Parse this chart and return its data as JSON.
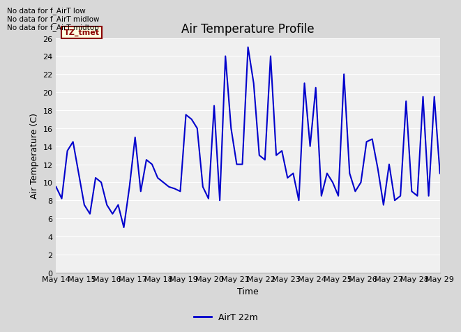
{
  "title": "Air Temperature Profile",
  "xlabel": "Time",
  "ylabel": "Air Temperature (C)",
  "legend_label": "AirT 22m",
  "no_data_texts": [
    "No data for f_AirT low",
    "No data for f_AirT midlow",
    "No data for f_AirT midtop"
  ],
  "legend_box_label": "TZ_tmet",
  "ylim": [
    0,
    26
  ],
  "yticks": [
    0,
    2,
    4,
    6,
    8,
    10,
    12,
    14,
    16,
    18,
    20,
    22,
    24,
    26
  ],
  "line_color": "#0000cc",
  "line_width": 1.5,
  "fig_facecolor": "#d8d8d8",
  "plot_facecolor": "#f0f0f0",
  "x_dates": [
    "May 14",
    "May 15",
    "May 16",
    "May 17",
    "May 18",
    "May 19",
    "May 20",
    "May 21",
    "May 22",
    "May 23",
    "May 24",
    "May 25",
    "May 26",
    "May 27",
    "May 28",
    "May 29"
  ],
  "temperature_data": [
    9.5,
    8.2,
    13.5,
    14.5,
    11.0,
    7.5,
    6.5,
    10.5,
    10.0,
    7.5,
    6.5,
    7.5,
    5.0,
    9.5,
    15.0,
    9.0,
    12.5,
    12.0,
    10.5,
    10.0,
    9.5,
    9.3,
    9.0,
    17.5,
    17.0,
    16.0,
    9.5,
    8.2,
    18.5,
    8.0,
    24.0,
    16.0,
    12.0,
    12.0,
    25.0,
    21.0,
    13.0,
    12.5,
    24.0,
    13.0,
    13.5,
    10.5,
    11.0,
    8.0,
    21.0,
    14.0,
    20.5,
    8.5,
    11.0,
    10.0,
    8.5,
    22.0,
    11.0,
    9.0,
    10.0,
    14.5,
    14.8,
    11.5,
    7.5,
    12.0,
    8.0,
    8.5,
    19.0,
    9.0,
    8.5,
    19.5,
    8.5,
    19.5,
    11.0
  ]
}
